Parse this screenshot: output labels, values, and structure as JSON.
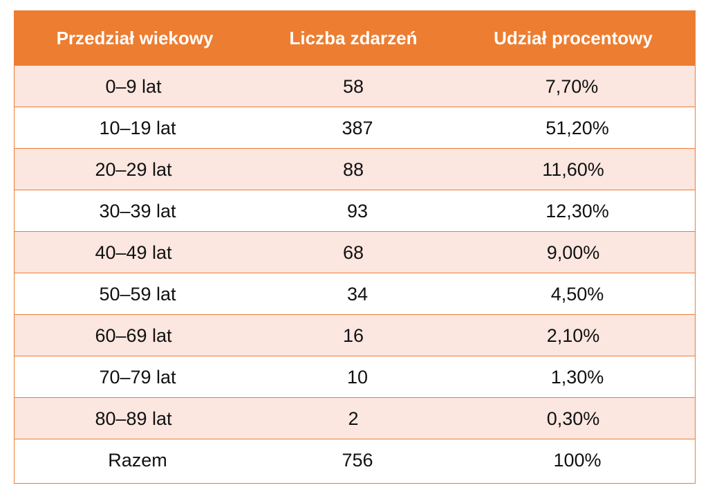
{
  "colors": {
    "header_bg": "#ed7d31",
    "header_text": "#ffffff",
    "row_shaded": "#fbe6e0",
    "row_plain": "#ffffff",
    "border": "#ed7d31"
  },
  "table": {
    "headers": [
      "Przedział wiekowy",
      "Liczba zdarzeń",
      "Udział procentowy"
    ],
    "rows": [
      [
        "0–9 lat",
        "58",
        "7,70%"
      ],
      [
        "10–19 lat",
        "387",
        "51,20%"
      ],
      [
        "20–29 lat",
        "88",
        "11,60%"
      ],
      [
        "30–39 lat",
        "93",
        "12,30%"
      ],
      [
        "40–49 lat",
        "68",
        "9,00%"
      ],
      [
        "50–59 lat",
        "34",
        "4,50%"
      ],
      [
        "60–69 lat",
        "16",
        "2,10%"
      ],
      [
        "70–79 lat",
        "10",
        "1,30%"
      ],
      [
        "80–89 lat",
        "2",
        "0,30%"
      ],
      [
        "Razem",
        "756",
        "100%"
      ]
    ]
  }
}
